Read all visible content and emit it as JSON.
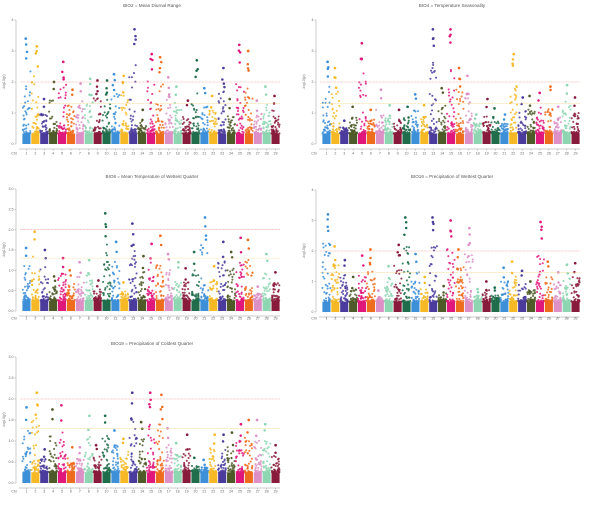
{
  "figure": {
    "colors": [
      "#3d8fd8",
      "#f6b925",
      "#4b3b9c",
      "#4e5a27",
      "#e0187b",
      "#ee6c1d",
      "#dc90c6",
      "#8ed6b2",
      "#881b3b",
      "#1f6d4a"
    ],
    "threshold_colors": {
      "strict": "#f08b8b",
      "suggestive": "#f2d27a"
    }
  },
  "chart_data": [
    {
      "type": "scatter",
      "subtype": "manhattan",
      "title": "BIO2 = Mean Diurnal Range",
      "xlabel": "Chr",
      "ylabel": "-log10(p)",
      "categories": [
        "1",
        "2",
        "3",
        "4",
        "5",
        "6",
        "7",
        "8",
        "9",
        "10",
        "11",
        "12",
        "13",
        "14",
        "15",
        "16",
        "17",
        "18",
        "19",
        "20",
        "21",
        "22",
        "23",
        "24",
        "25",
        "26",
        "27",
        "28",
        "29"
      ],
      "ylim": [
        0,
        4
      ],
      "yticks": [
        "0",
        "1",
        "2",
        "3",
        "4"
      ],
      "ytick_values": [
        0,
        1,
        2,
        3,
        4
      ],
      "thresholds": {
        "strict": 2.0,
        "suggestive": 1.3
      },
      "peaks": [
        3.4,
        3.15,
        1.45,
        2.0,
        2.65,
        1.75,
        1.95,
        2.1,
        2.05,
        2.05,
        2.25,
        2.2,
        3.7,
        1.1,
        2.9,
        2.8,
        2.15,
        1.85,
        1.4,
        2.7,
        1.8,
        1.55,
        2.45,
        1.45,
        3.2,
        3.0,
        1.4,
        1.85,
        1.55
      ]
    },
    {
      "type": "scatter",
      "subtype": "manhattan",
      "title": "BIO4 = Temperature Seasonality",
      "xlabel": "Chr",
      "ylabel": "-log10(p)",
      "categories": [
        "1",
        "2",
        "3",
        "4",
        "5",
        "6",
        "7",
        "8",
        "9",
        "10",
        "11",
        "12",
        "13",
        "14",
        "15",
        "16",
        "17",
        "18",
        "19",
        "20",
        "21",
        "22",
        "23",
        "24",
        "25",
        "26",
        "27",
        "28",
        "29"
      ],
      "ylim": [
        0,
        4
      ],
      "yticks": [
        "0",
        "1",
        "2",
        "3",
        "4"
      ],
      "ytick_values": [
        0,
        1,
        2,
        3,
        4
      ],
      "thresholds": {
        "strict": 2.0,
        "suggestive": 1.3
      },
      "peaks": [
        2.65,
        2.45,
        0.75,
        1.2,
        3.25,
        1.1,
        1.75,
        1.25,
        1.1,
        1.2,
        1.6,
        1.25,
        3.7,
        1.8,
        3.7,
        2.45,
        2.2,
        0.95,
        1.45,
        1.15,
        0.95,
        2.9,
        1.5,
        1.55,
        1.65,
        1.85,
        1.2,
        1.9,
        1.5
      ]
    },
    {
      "type": "scatter",
      "subtype": "manhattan",
      "title": "BIO8 = Mean Temperature of Wettest Quarter",
      "xlabel": "Chr",
      "ylabel": "-log10(p)",
      "categories": [
        "1",
        "2",
        "3",
        "4",
        "5",
        "6",
        "7",
        "8",
        "9",
        "10",
        "11",
        "12",
        "13",
        "14",
        "15",
        "16",
        "17",
        "18",
        "19",
        "20",
        "21",
        "22",
        "23",
        "24",
        "25",
        "26",
        "27",
        "28",
        "29"
      ],
      "ylim": [
        0,
        3
      ],
      "yticks": [
        "0.0",
        "0.5",
        "1.0",
        "1.5",
        "2.0",
        "2.5",
        "3.0"
      ],
      "ytick_values": [
        0,
        0.5,
        1,
        1.5,
        2,
        2.5,
        3
      ],
      "thresholds": {
        "strict": 2.0,
        "suggestive": 1.3
      },
      "peaks": [
        1.55,
        1.95,
        1.5,
        0.85,
        1.3,
        1.0,
        1.2,
        1.25,
        0.75,
        2.4,
        1.7,
        0.7,
        2.15,
        1.35,
        1.65,
        1.85,
        1.4,
        1.2,
        1.05,
        1.45,
        2.3,
        1.1,
        1.7,
        1.45,
        1.8,
        1.75,
        0.6,
        1.4,
        0.95
      ]
    },
    {
      "type": "scatter",
      "subtype": "manhattan",
      "title": "BIO16 = Precipitation of Wettest Quarter",
      "xlabel": "Chr",
      "ylabel": "-log10(p)",
      "categories": [
        "1",
        "2",
        "3",
        "4",
        "5",
        "6",
        "7",
        "8",
        "9",
        "10",
        "11",
        "12",
        "13",
        "14",
        "15",
        "16",
        "17",
        "18",
        "19",
        "20",
        "21",
        "22",
        "23",
        "24",
        "25",
        "26",
        "27",
        "28",
        "29"
      ],
      "ylim": [
        0,
        4
      ],
      "yticks": [
        "0",
        "1",
        "2",
        "3",
        "4"
      ],
      "ytick_values": [
        0,
        1,
        2,
        3,
        4
      ],
      "thresholds": {
        "strict": 2.0,
        "suggestive": 1.3
      },
      "peaks": [
        3.2,
        2.15,
        1.7,
        1.15,
        1.85,
        2.05,
        0.7,
        1.5,
        2.2,
        3.1,
        1.9,
        1.15,
        3.1,
        0.85,
        3.0,
        2.05,
        2.75,
        0.75,
        1.0,
        0.8,
        1.45,
        1.65,
        1.35,
        1.0,
        2.95,
        1.65,
        1.3,
        1.55,
        1.6
      ]
    },
    {
      "type": "scatter",
      "subtype": "manhattan",
      "title": "BIO19 = Precipitation of Coldest Quarter",
      "xlabel": "Chr",
      "ylabel": "-log10(p)",
      "categories": [
        "1",
        "2",
        "3",
        "4",
        "5",
        "6",
        "7",
        "8",
        "9",
        "10",
        "11",
        "12",
        "13",
        "14",
        "15",
        "16",
        "17",
        "18",
        "19",
        "20",
        "21",
        "22",
        "23",
        "24",
        "25",
        "26",
        "27",
        "28",
        "29"
      ],
      "ylim": [
        0,
        3
      ],
      "yticks": [
        "0.0",
        "0.5",
        "1.0",
        "1.5",
        "2.0",
        "2.5",
        "3.0"
      ],
      "ytick_values": [
        0,
        0.5,
        1,
        1.5,
        2,
        2.5,
        3
      ],
      "thresholds": {
        "strict": 2.0,
        "suggestive": 1.3
      },
      "peaks": [
        1.8,
        2.15,
        0.8,
        1.75,
        1.85,
        0.85,
        0.85,
        1.6,
        0.9,
        1.6,
        1.25,
        1.05,
        2.15,
        1.45,
        2.15,
        2.1,
        1.3,
        0.95,
        1.15,
        0.6,
        0.55,
        1.15,
        1.15,
        1.2,
        1.4,
        1.5,
        1.5,
        1.4,
        0.9
      ]
    }
  ]
}
